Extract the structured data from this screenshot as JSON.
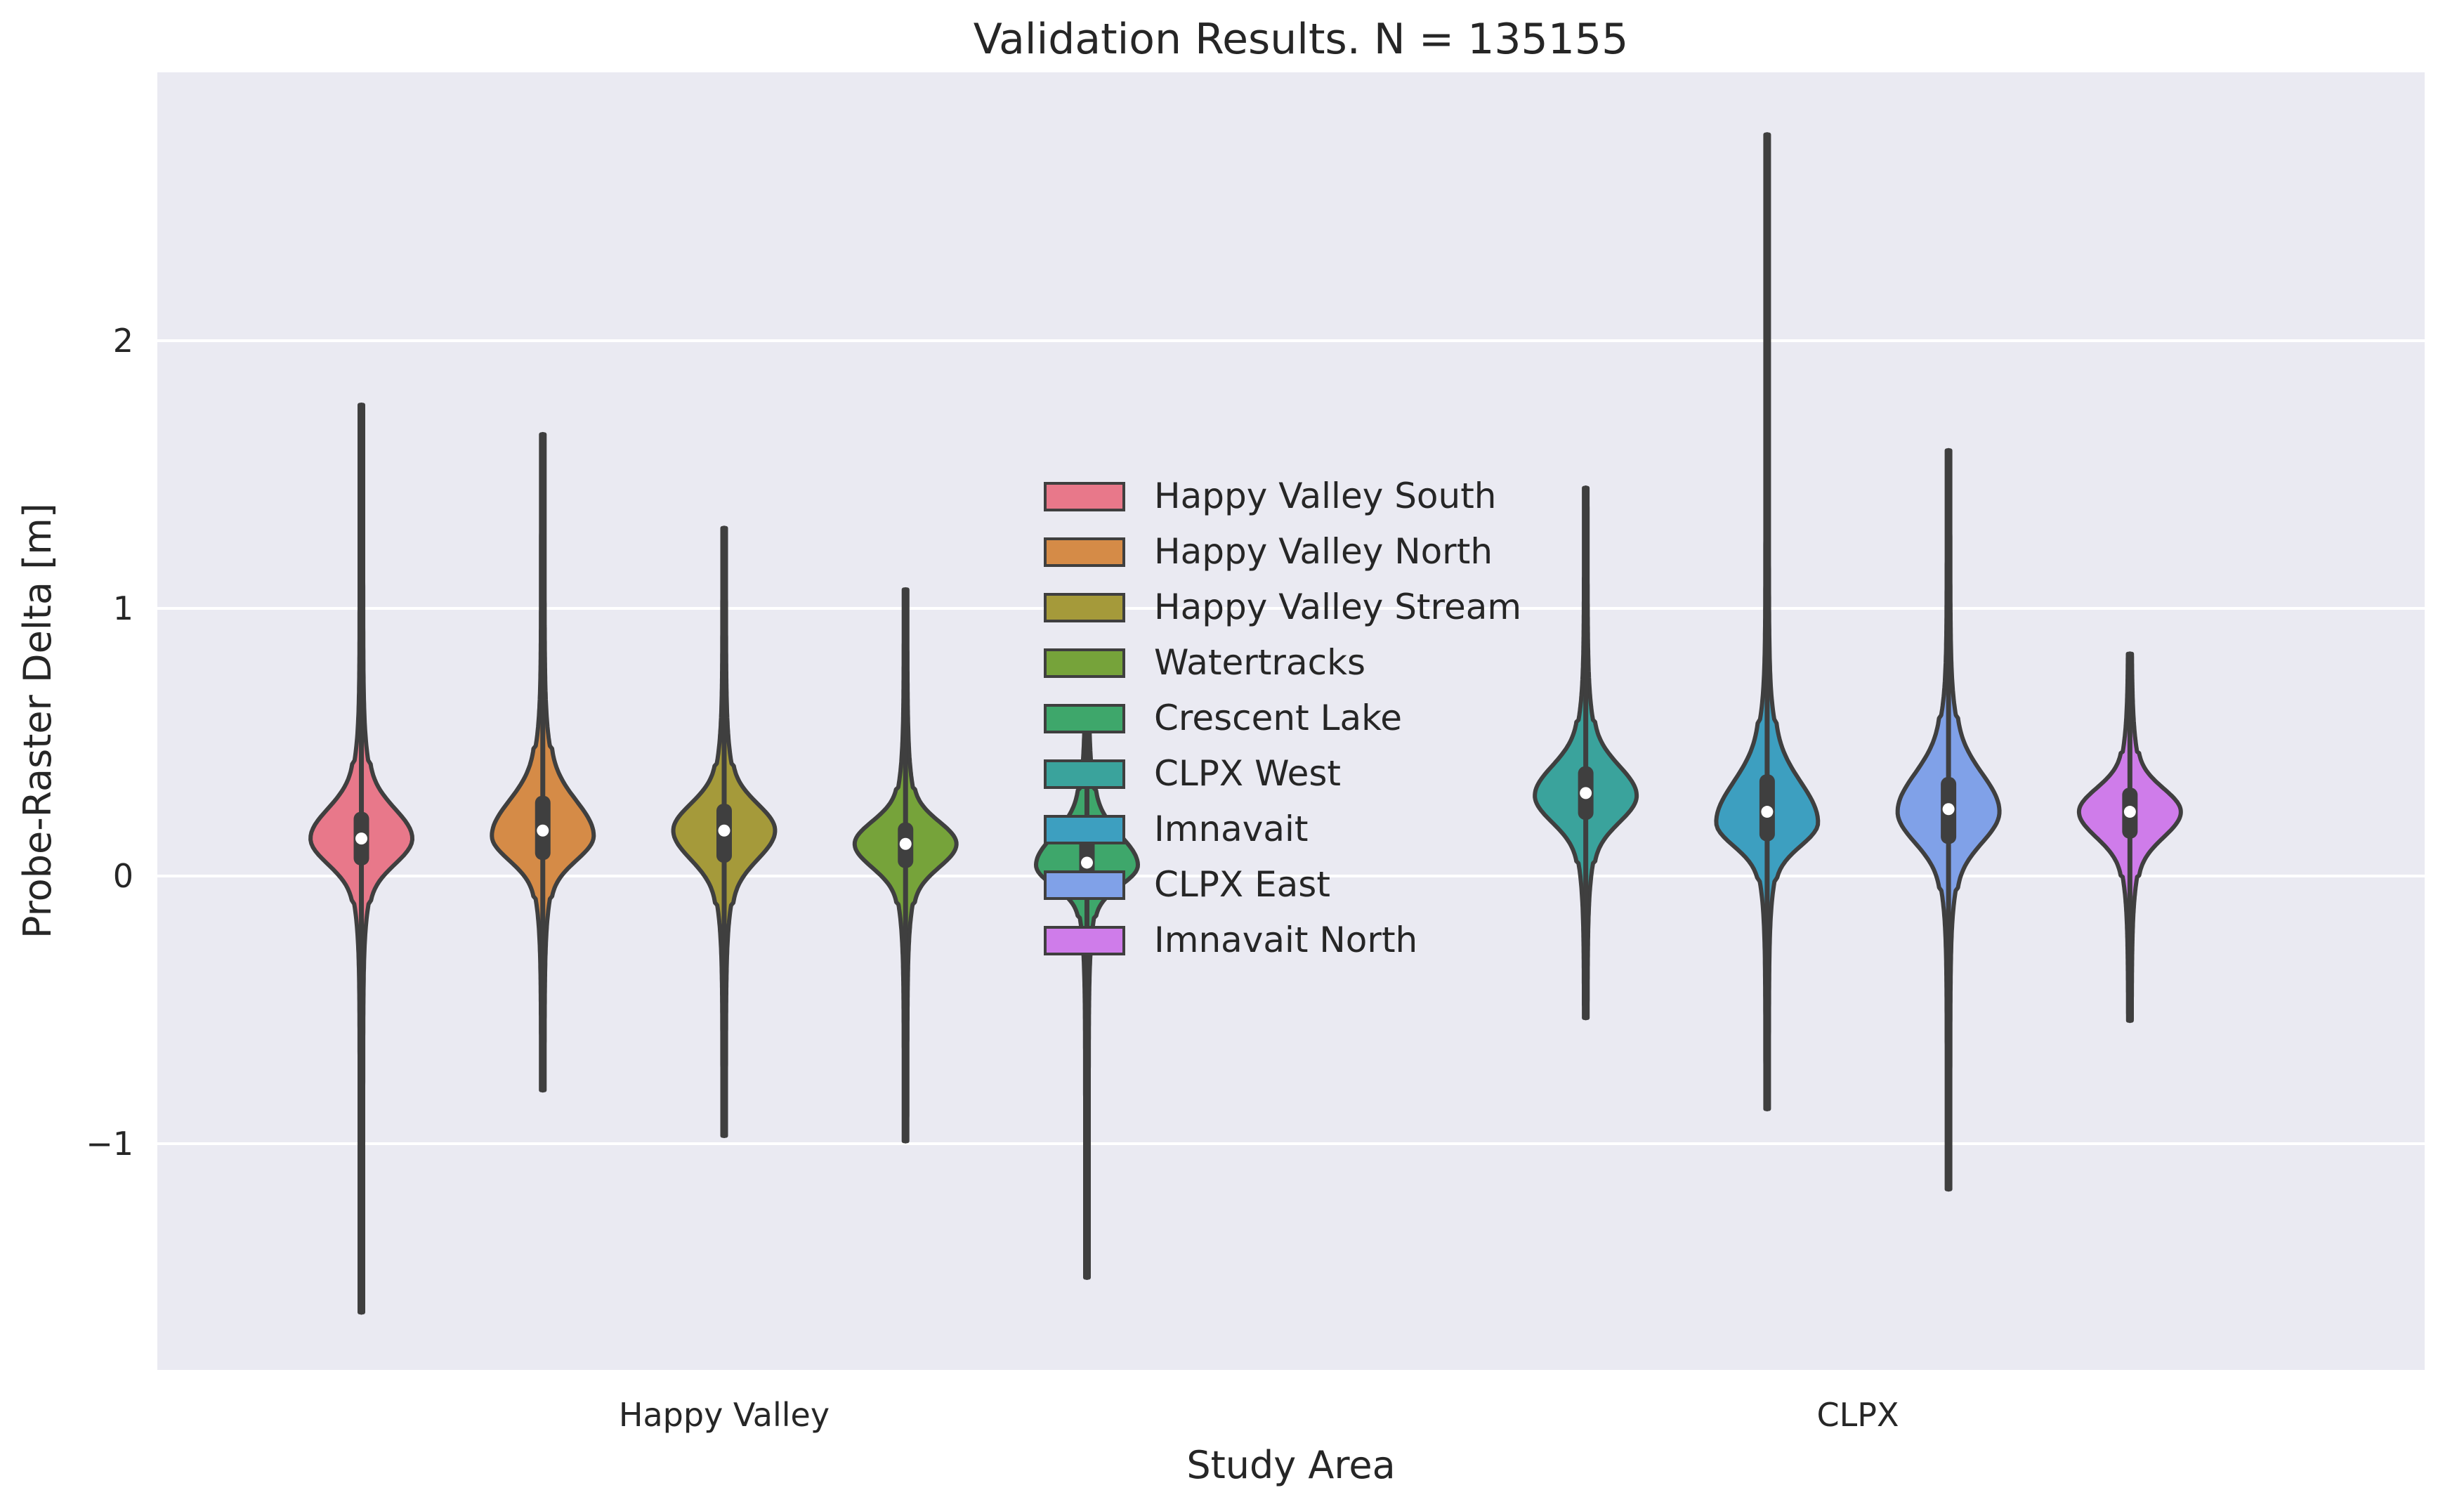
{
  "chart_data": {
    "type": "violin",
    "title": "Validation Results. N = 135155",
    "xlabel": "Study Area",
    "ylabel": "Probe-Raster Delta [m]",
    "ylim": [
      -1.85,
      3.0
    ],
    "yticks": [
      -1,
      0,
      1,
      2
    ],
    "ytick_labels": [
      "−1",
      "0",
      "1",
      "2"
    ],
    "categories": [
      "Happy Valley",
      "CLPX"
    ],
    "grid": true,
    "legend_position": "center",
    "series": [
      {
        "name": "Happy Valley South",
        "category": "Happy Valley",
        "color": "#e8788a",
        "min": -1.63,
        "q1": 0.04,
        "median": 0.14,
        "q3": 0.24,
        "max": 1.76,
        "mode": 0.14,
        "core_low": -0.1,
        "core_high": 0.42
      },
      {
        "name": "Happy Valley North",
        "category": "Happy Valley",
        "color": "#d58b47",
        "min": -0.8,
        "q1": 0.06,
        "median": 0.17,
        "q3": 0.3,
        "max": 1.65,
        "mode": 0.15,
        "core_low": -0.08,
        "core_high": 0.48
      },
      {
        "name": "Happy Valley Stream",
        "category": "Happy Valley",
        "color": "#a59a3a",
        "min": -0.97,
        "q1": 0.05,
        "median": 0.17,
        "q3": 0.27,
        "max": 1.3,
        "mode": 0.17,
        "core_low": -0.1,
        "core_high": 0.42
      },
      {
        "name": "Watertracks",
        "category": "Happy Valley",
        "color": "#76a33a",
        "min": -0.99,
        "q1": 0.03,
        "median": 0.12,
        "q3": 0.2,
        "max": 1.07,
        "mode": 0.12,
        "core_low": -0.1,
        "core_high": 0.33
      },
      {
        "name": "Crescent Lake",
        "category": "Happy Valley",
        "color": "#3ea76b",
        "min": -1.5,
        "q1": -0.04,
        "median": 0.05,
        "q3": 0.15,
        "max": 0.58,
        "mode": 0.04,
        "core_low": -0.15,
        "core_high": 0.32
      },
      {
        "name": "CLPX West",
        "category": "CLPX",
        "color": "#3aa39c",
        "min": -0.53,
        "q1": 0.21,
        "median": 0.31,
        "q3": 0.41,
        "max": 1.45,
        "mode": 0.3,
        "core_low": 0.05,
        "core_high": 0.58
      },
      {
        "name": "Imnavait",
        "category": "CLPX",
        "color": "#3d9fc0",
        "min": -0.87,
        "q1": 0.13,
        "median": 0.24,
        "q3": 0.38,
        "max": 2.77,
        "mode": 0.2,
        "core_low": -0.02,
        "core_high": 0.58
      },
      {
        "name": "CLPX East",
        "category": "CLPX",
        "color": "#80a1e8",
        "min": -1.17,
        "q1": 0.12,
        "median": 0.25,
        "q3": 0.37,
        "max": 1.59,
        "mode": 0.24,
        "core_low": -0.05,
        "core_high": 0.6
      },
      {
        "name": "Imnavait North",
        "category": "CLPX",
        "color": "#cf7cea",
        "min": -0.54,
        "q1": 0.14,
        "median": 0.24,
        "q3": 0.33,
        "max": 0.83,
        "mode": 0.24,
        "core_low": 0.0,
        "core_high": 0.46
      }
    ]
  }
}
